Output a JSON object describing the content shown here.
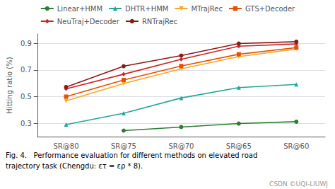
{
  "chart_data": {
    "type": "line",
    "categories": [
      "SR@80",
      "SR@75",
      "SR@70",
      "SR@65",
      "SR@60"
    ],
    "series": [
      {
        "name": "Linear+HMM",
        "color": "#2e7d32",
        "marker": "circle",
        "line_style": "solid",
        "values": [
          null,
          0.245,
          0.272,
          0.298,
          0.312
        ]
      },
      {
        "name": "DHTR+HMM",
        "color": "#26a69a",
        "marker": "triangle-up",
        "line_style": "solid",
        "values": [
          0.29,
          0.375,
          0.49,
          0.568,
          0.592
        ]
      },
      {
        "name": "MTrajRec",
        "color": "#f9a825",
        "marker": "triangle-down",
        "line_style": "solid",
        "values": [
          0.468,
          0.598,
          0.708,
          0.8,
          0.858
        ]
      },
      {
        "name": "GTS+Decoder",
        "color": "#e65100",
        "marker": "square",
        "line_style": "solid",
        "values": [
          0.5,
          0.625,
          0.73,
          0.818,
          0.868
        ]
      },
      {
        "name": "NeuTraj+Decoder",
        "color": "#c62828",
        "marker": "diamond",
        "line_style": "solid",
        "values": [
          0.558,
          0.668,
          0.78,
          0.878,
          0.895
        ]
      },
      {
        "name": "RNTrajRec",
        "color": "#8b1a1a",
        "marker": "circle",
        "line_style": "solid",
        "values": [
          0.572,
          0.728,
          0.808,
          0.898,
          0.912
        ]
      }
    ],
    "y_label": "Hitting ratio (%)",
    "ylim": [
      0.2,
      0.97
    ],
    "yticks": [
      0.3,
      0.5,
      0.7,
      0.9
    ],
    "grid": true,
    "legend": "top",
    "annotations": [
      "Fig. 4.   Performance evaluation for different methods on elevated road",
      "trajectory task (Chengdu: ετ = ερ * 8).",
      "CSDN ©UQI-LIUWJ"
    ]
  }
}
